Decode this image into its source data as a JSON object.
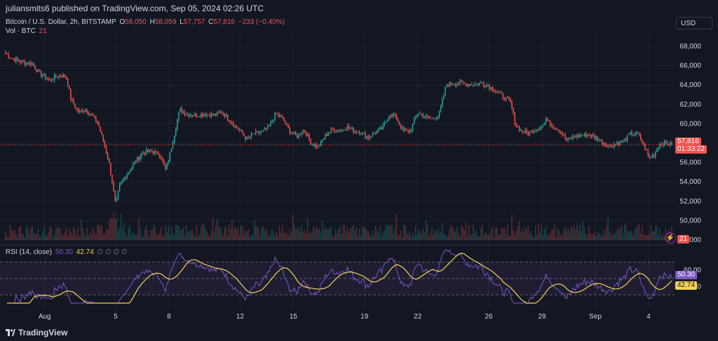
{
  "header": {
    "publish_line": "juliansmits6 published on TradingView.com, Sep 05, 2024 02:26 UTC"
  },
  "legend": {
    "symbol": "Bitcoin / U.S. Dollar, 2h, BITSTAMP",
    "o_label": "O",
    "o_value": "58,050",
    "h_label": "H",
    "h_value": "58,059",
    "l_label": "L",
    "l_value": "57,757",
    "c_label": "C",
    "c_value": "57,816",
    "change": "−233 (−0.40%)",
    "vol_label": "Vol · BTC",
    "vol_value": "21",
    "rsi_label": "RSI (14, close)",
    "rsi_value": "50.30",
    "rsi_ma_value": "42.74",
    "rsi_extras": "∅ ∅ ∅ ∅"
  },
  "currency": "USD",
  "price_tag": {
    "price": "57,816",
    "countdown": "01:33:22"
  },
  "volume_tag": "21",
  "brand": "TradingView",
  "colors": {
    "background": "#131722",
    "up": "#26a69a",
    "down": "#ef5350",
    "rsi_line": "#7e57c2",
    "rsi_ma": "#f7d154",
    "grid": "#1f2330",
    "text": "#d1d4dc"
  },
  "chart_data": [
    {
      "type": "candlestick",
      "title": "Bitcoin / U.S. Dollar, 2h, BITSTAMP",
      "price_axis_ticks": [
        "68,000",
        "66,000",
        "64,000",
        "62,000",
        "60,000",
        "58,000",
        "56,000",
        "54,000",
        "52,000",
        "50,000",
        "48,000"
      ],
      "ylim": [
        48000,
        68800
      ],
      "date_ticks": [
        {
          "label": "Aug",
          "day": 1
        },
        {
          "label": "5",
          "day": 5
        },
        {
          "label": "8",
          "day": 8
        },
        {
          "label": "12",
          "day": 12
        },
        {
          "label": "15",
          "day": 15
        },
        {
          "label": "19",
          "day": 19
        },
        {
          "label": "22",
          "day": 22
        },
        {
          "label": "26",
          "day": 26
        },
        {
          "label": "29",
          "day": 29
        },
        {
          "label": "Sep",
          "day": 32
        },
        {
          "label": "4",
          "day": 35
        }
      ],
      "x_range_days": [
        -1.2,
        36.3
      ],
      "close_path": [
        {
          "day": -1.2,
          "close": 67300
        },
        {
          "day": -0.8,
          "close": 66700
        },
        {
          "day": -0.3,
          "close": 66400
        },
        {
          "day": 0.3,
          "close": 66200
        },
        {
          "day": 0.7,
          "close": 65200
        },
        {
          "day": 1.3,
          "close": 64500
        },
        {
          "day": 1.8,
          "close": 65000
        },
        {
          "day": 2.2,
          "close": 64900
        },
        {
          "day": 2.5,
          "close": 62400
        },
        {
          "day": 2.9,
          "close": 61200
        },
        {
          "day": 3.3,
          "close": 61500
        },
        {
          "day": 3.7,
          "close": 60800
        },
        {
          "day": 4.0,
          "close": 60000
        },
        {
          "day": 4.3,
          "close": 58200
        },
        {
          "day": 4.6,
          "close": 56200
        },
        {
          "day": 4.8,
          "close": 54000
        },
        {
          "day": 5.0,
          "close": 51500
        },
        {
          "day": 5.2,
          "close": 53500
        },
        {
          "day": 5.5,
          "close": 54500
        },
        {
          "day": 6.0,
          "close": 55800
        },
        {
          "day": 6.5,
          "close": 57000
        },
        {
          "day": 7.0,
          "close": 57200
        },
        {
          "day": 7.5,
          "close": 56800
        },
        {
          "day": 7.8,
          "close": 55200
        },
        {
          "day": 8.0,
          "close": 56500
        },
        {
          "day": 8.3,
          "close": 59000
        },
        {
          "day": 8.6,
          "close": 61500
        },
        {
          "day": 9.0,
          "close": 61000
        },
        {
          "day": 9.5,
          "close": 60900
        },
        {
          "day": 10.0,
          "close": 61000
        },
        {
          "day": 10.5,
          "close": 60900
        },
        {
          "day": 11.0,
          "close": 61200
        },
        {
          "day": 11.5,
          "close": 60200
        },
        {
          "day": 12.0,
          "close": 59200
        },
        {
          "day": 12.4,
          "close": 58400
        },
        {
          "day": 12.8,
          "close": 59000
        },
        {
          "day": 13.2,
          "close": 59100
        },
        {
          "day": 13.6,
          "close": 59600
        },
        {
          "day": 14.0,
          "close": 61000
        },
        {
          "day": 14.4,
          "close": 60500
        },
        {
          "day": 14.8,
          "close": 59200
        },
        {
          "day": 15.2,
          "close": 58700
        },
        {
          "day": 15.6,
          "close": 59400
        },
        {
          "day": 16.0,
          "close": 58000
        },
        {
          "day": 16.4,
          "close": 57600
        },
        {
          "day": 16.8,
          "close": 58800
        },
        {
          "day": 17.2,
          "close": 59400
        },
        {
          "day": 17.6,
          "close": 59300
        },
        {
          "day": 18.0,
          "close": 59700
        },
        {
          "day": 18.4,
          "close": 59300
        },
        {
          "day": 18.8,
          "close": 59100
        },
        {
          "day": 19.2,
          "close": 58600
        },
        {
          "day": 19.6,
          "close": 59100
        },
        {
          "day": 20.0,
          "close": 59500
        },
        {
          "day": 20.4,
          "close": 61000
        },
        {
          "day": 20.8,
          "close": 60600
        },
        {
          "day": 21.2,
          "close": 59200
        },
        {
          "day": 21.6,
          "close": 59300
        },
        {
          "day": 22.0,
          "close": 61200
        },
        {
          "day": 22.4,
          "close": 60700
        },
        {
          "day": 22.8,
          "close": 60500
        },
        {
          "day": 23.2,
          "close": 60900
        },
        {
          "day": 23.6,
          "close": 64000
        },
        {
          "day": 24.0,
          "close": 64200
        },
        {
          "day": 24.4,
          "close": 64200
        },
        {
          "day": 24.8,
          "close": 64100
        },
        {
          "day": 25.2,
          "close": 64100
        },
        {
          "day": 25.6,
          "close": 64200
        },
        {
          "day": 26.0,
          "close": 63900
        },
        {
          "day": 26.4,
          "close": 63400
        },
        {
          "day": 26.8,
          "close": 62800
        },
        {
          "day": 27.2,
          "close": 62300
        },
        {
          "day": 27.5,
          "close": 60000
        },
        {
          "day": 27.8,
          "close": 59300
        },
        {
          "day": 28.2,
          "close": 59000
        },
        {
          "day": 28.6,
          "close": 59400
        },
        {
          "day": 29.0,
          "close": 59800
        },
        {
          "day": 29.3,
          "close": 60500
        },
        {
          "day": 29.6,
          "close": 59800
        },
        {
          "day": 30.0,
          "close": 59300
        },
        {
          "day": 30.4,
          "close": 58300
        },
        {
          "day": 30.8,
          "close": 58700
        },
        {
          "day": 31.2,
          "close": 58800
        },
        {
          "day": 31.6,
          "close": 58900
        },
        {
          "day": 32.0,
          "close": 58600
        },
        {
          "day": 32.4,
          "close": 58100
        },
        {
          "day": 32.8,
          "close": 57700
        },
        {
          "day": 33.2,
          "close": 58000
        },
        {
          "day": 33.6,
          "close": 58200
        },
        {
          "day": 34.0,
          "close": 59000
        },
        {
          "day": 34.4,
          "close": 58900
        },
        {
          "day": 34.8,
          "close": 57500
        },
        {
          "day": 35.0,
          "close": 56500
        },
        {
          "day": 35.3,
          "close": 56800
        },
        {
          "day": 35.6,
          "close": 57900
        },
        {
          "day": 36.0,
          "close": 58000
        },
        {
          "day": 36.3,
          "close": 57816
        }
      ],
      "last_close": 57816,
      "volume": {
        "label": "Vol · BTC",
        "last": 21
      }
    },
    {
      "type": "line",
      "title": "RSI (14, close)",
      "ylim": [
        20,
        85
      ],
      "levels": [
        30,
        50,
        70
      ],
      "tick_labels": [
        "60.00",
        "40.00"
      ],
      "series": [
        {
          "name": "RSI (14, close)",
          "last": 50.3
        },
        {
          "name": "RSI-based MA",
          "last": 42.74
        }
      ]
    }
  ]
}
